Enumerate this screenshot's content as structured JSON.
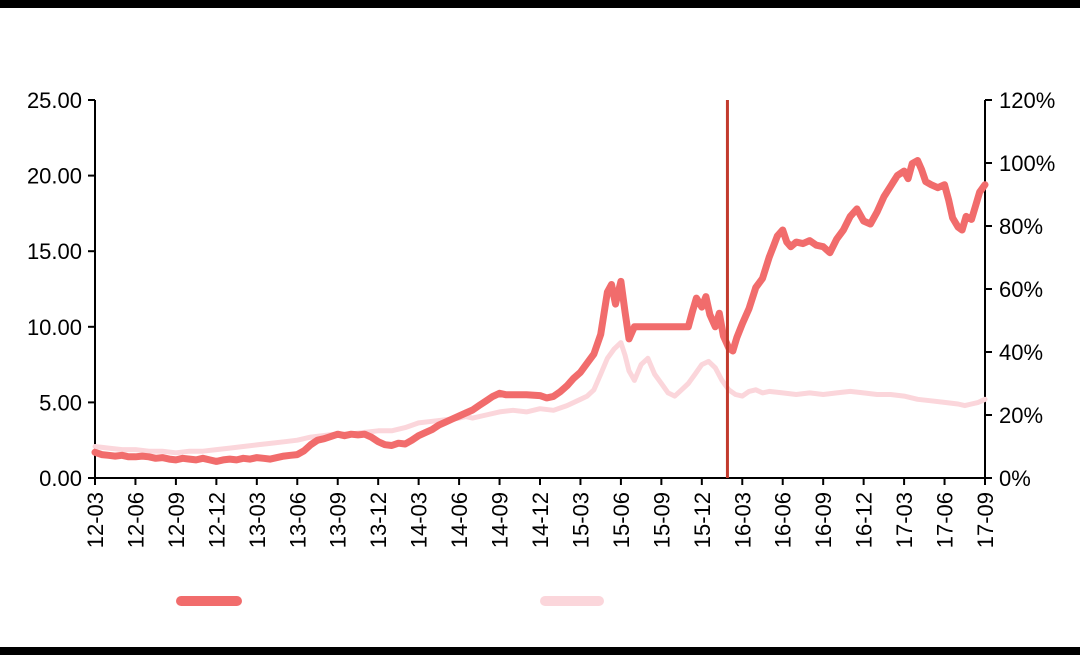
{
  "page": {
    "background": "#ffffff",
    "bar_color": "#000000"
  },
  "chart_data": {
    "type": "line",
    "title": "",
    "xlabel": "",
    "ylabel_left": "",
    "ylabel_right": "",
    "grid": "off",
    "legend_position": "bottom",
    "x_axis": {
      "tick_labels": [
        "12-03",
        "12-06",
        "12-09",
        "12-12",
        "13-03",
        "13-06",
        "13-09",
        "13-12",
        "14-03",
        "14-06",
        "14-09",
        "14-12",
        "15-03",
        "15-06",
        "15-09",
        "15-12",
        "16-03",
        "16-06",
        "16-09",
        "16-12",
        "17-03",
        "17-06",
        "17-09"
      ],
      "months_per_tick": 3,
      "month_range": [
        0,
        66
      ]
    },
    "left_axis": {
      "tick_values": [
        0,
        5,
        10,
        15,
        20,
        25
      ],
      "tick_labels": [
        "0.00",
        "5.00",
        "10.00",
        "15.00",
        "20.00",
        "25.00"
      ],
      "min": 0,
      "max": 25
    },
    "right_axis": {
      "tick_values": [
        0,
        20,
        40,
        60,
        80,
        100,
        120
      ],
      "tick_labels": [
        "0%",
        "20%",
        "40%",
        "60%",
        "80%",
        "100%",
        "120%"
      ],
      "min": 0,
      "max": 120
    },
    "series": [
      {
        "name": "pink-series",
        "axis": "right",
        "color": "#fbd6db",
        "stroke_width": 5,
        "points": [
          [
            0,
            10
          ],
          [
            1,
            9.5
          ],
          [
            2,
            9
          ],
          [
            3,
            9
          ],
          [
            4,
            8.5
          ],
          [
            5,
            8.5
          ],
          [
            6,
            8
          ],
          [
            7,
            8.5
          ],
          [
            8,
            8.5
          ],
          [
            9,
            9
          ],
          [
            10,
            9.5
          ],
          [
            11,
            10
          ],
          [
            12,
            10.5
          ],
          [
            13,
            11
          ],
          [
            14,
            11.5
          ],
          [
            15,
            12
          ],
          [
            16,
            13
          ],
          [
            17,
            13.5
          ],
          [
            18,
            14
          ],
          [
            19,
            14
          ],
          [
            20,
            14.5
          ],
          [
            21,
            15
          ],
          [
            22,
            15
          ],
          [
            23,
            16
          ],
          [
            24,
            17.5
          ],
          [
            25,
            18
          ],
          [
            26,
            18.5
          ],
          [
            27,
            19
          ],
          [
            27.5,
            19.5
          ],
          [
            28,
            19
          ],
          [
            29,
            20
          ],
          [
            30,
            21
          ],
          [
            31,
            21.5
          ],
          [
            32,
            21
          ],
          [
            33,
            22
          ],
          [
            34,
            21.5
          ],
          [
            35,
            23
          ],
          [
            36,
            25
          ],
          [
            36.5,
            26
          ],
          [
            37,
            28
          ],
          [
            37.5,
            33
          ],
          [
            38,
            38
          ],
          [
            38.5,
            41
          ],
          [
            39,
            43
          ],
          [
            39.3,
            39
          ],
          [
            39.6,
            34
          ],
          [
            40,
            31
          ],
          [
            40.5,
            36
          ],
          [
            41,
            38
          ],
          [
            41.5,
            33
          ],
          [
            42,
            30
          ],
          [
            42.5,
            27
          ],
          [
            43,
            26
          ],
          [
            43.5,
            28
          ],
          [
            44,
            30
          ],
          [
            44.5,
            33
          ],
          [
            45,
            36
          ],
          [
            45.5,
            37
          ],
          [
            46,
            35
          ],
          [
            46.5,
            31
          ],
          [
            47,
            28
          ],
          [
            47.5,
            26.5
          ],
          [
            48,
            26
          ],
          [
            48.5,
            27.5
          ],
          [
            49,
            28
          ],
          [
            49.5,
            27
          ],
          [
            50,
            27.5
          ],
          [
            51,
            27
          ],
          [
            52,
            26.5
          ],
          [
            53,
            27
          ],
          [
            54,
            26.5
          ],
          [
            55,
            27
          ],
          [
            56,
            27.5
          ],
          [
            57,
            27
          ],
          [
            58,
            26.5
          ],
          [
            59,
            26.5
          ],
          [
            60,
            26
          ],
          [
            60.5,
            25.5
          ],
          [
            61,
            25
          ],
          [
            62,
            24.5
          ],
          [
            63,
            24
          ],
          [
            64,
            23.5
          ],
          [
            64.5,
            23
          ],
          [
            65,
            23.5
          ],
          [
            65.5,
            24
          ],
          [
            66,
            25
          ]
        ]
      },
      {
        "name": "red-series",
        "axis": "left",
        "color": "#f16c6c",
        "stroke_width": 7,
        "points": [
          [
            0,
            1.7
          ],
          [
            0.5,
            1.55
          ],
          [
            1,
            1.5
          ],
          [
            1.5,
            1.45
          ],
          [
            2,
            1.5
          ],
          [
            2.5,
            1.4
          ],
          [
            3,
            1.4
          ],
          [
            3.5,
            1.45
          ],
          [
            4,
            1.4
          ],
          [
            4.5,
            1.3
          ],
          [
            5,
            1.35
          ],
          [
            5.5,
            1.25
          ],
          [
            6,
            1.2
          ],
          [
            6.5,
            1.3
          ],
          [
            7,
            1.25
          ],
          [
            7.5,
            1.2
          ],
          [
            8,
            1.3
          ],
          [
            8.5,
            1.2
          ],
          [
            9,
            1.1
          ],
          [
            9.5,
            1.2
          ],
          [
            10,
            1.25
          ],
          [
            10.5,
            1.2
          ],
          [
            11,
            1.3
          ],
          [
            11.5,
            1.25
          ],
          [
            12,
            1.35
          ],
          [
            12.5,
            1.3
          ],
          [
            13,
            1.25
          ],
          [
            13.5,
            1.35
          ],
          [
            14,
            1.45
          ],
          [
            14.5,
            1.5
          ],
          [
            15,
            1.55
          ],
          [
            15.5,
            1.8
          ],
          [
            16,
            2.2
          ],
          [
            16.5,
            2.5
          ],
          [
            17,
            2.6
          ],
          [
            17.5,
            2.75
          ],
          [
            18,
            2.9
          ],
          [
            18.5,
            2.8
          ],
          [
            19,
            2.9
          ],
          [
            19.5,
            2.85
          ],
          [
            20,
            2.9
          ],
          [
            20.5,
            2.7
          ],
          [
            21,
            2.4
          ],
          [
            21.5,
            2.2
          ],
          [
            22,
            2.15
          ],
          [
            22.5,
            2.3
          ],
          [
            23,
            2.25
          ],
          [
            23.5,
            2.5
          ],
          [
            24,
            2.8
          ],
          [
            24.5,
            3.0
          ],
          [
            25,
            3.2
          ],
          [
            25.5,
            3.5
          ],
          [
            26,
            3.7
          ],
          [
            26.5,
            3.9
          ],
          [
            27,
            4.1
          ],
          [
            27.5,
            4.3
          ],
          [
            28,
            4.5
          ],
          [
            28.5,
            4.8
          ],
          [
            29,
            5.1
          ],
          [
            29.5,
            5.4
          ],
          [
            30,
            5.6
          ],
          [
            30.5,
            5.5
          ],
          [
            31,
            5.5
          ],
          [
            32,
            5.5
          ],
          [
            33,
            5.45
          ],
          [
            33.5,
            5.3
          ],
          [
            34,
            5.4
          ],
          [
            34.5,
            5.7
          ],
          [
            35,
            6.1
          ],
          [
            35.5,
            6.6
          ],
          [
            36,
            7.0
          ],
          [
            36.5,
            7.6
          ],
          [
            37,
            8.2
          ],
          [
            37.5,
            9.5
          ],
          [
            38,
            12.3
          ],
          [
            38.3,
            12.8
          ],
          [
            38.6,
            11.5
          ],
          [
            39,
            13.0
          ],
          [
            39.3,
            11.0
          ],
          [
            39.6,
            9.2
          ],
          [
            40,
            10.0
          ],
          [
            40.5,
            10.0
          ],
          [
            41,
            10.0
          ],
          [
            41.5,
            10.0
          ],
          [
            42,
            10.0
          ],
          [
            42.5,
            10.0
          ],
          [
            43,
            10.0
          ],
          [
            43.5,
            10.0
          ],
          [
            44,
            10.0
          ],
          [
            44.3,
            11.0
          ],
          [
            44.6,
            11.9
          ],
          [
            45,
            11.3
          ],
          [
            45.3,
            12.0
          ],
          [
            45.6,
            10.8
          ],
          [
            46,
            10.0
          ],
          [
            46.3,
            10.9
          ],
          [
            46.6,
            9.4
          ],
          [
            47,
            8.6
          ],
          [
            47.3,
            8.4
          ],
          [
            47.6,
            9.3
          ],
          [
            48,
            10.2
          ],
          [
            48.5,
            11.2
          ],
          [
            49,
            12.6
          ],
          [
            49.5,
            13.2
          ],
          [
            50,
            14.6
          ],
          [
            50.3,
            15.3
          ],
          [
            50.6,
            16.0
          ],
          [
            51,
            16.4
          ],
          [
            51.3,
            15.6
          ],
          [
            51.6,
            15.3
          ],
          [
            52,
            15.6
          ],
          [
            52.5,
            15.5
          ],
          [
            53,
            15.7
          ],
          [
            53.5,
            15.4
          ],
          [
            54,
            15.3
          ],
          [
            54.5,
            14.9
          ],
          [
            55,
            15.8
          ],
          [
            55.5,
            16.4
          ],
          [
            56,
            17.3
          ],
          [
            56.5,
            17.8
          ],
          [
            57,
            17.0
          ],
          [
            57.5,
            16.8
          ],
          [
            58,
            17.6
          ],
          [
            58.5,
            18.6
          ],
          [
            59,
            19.3
          ],
          [
            59.5,
            20.0
          ],
          [
            60,
            20.3
          ],
          [
            60.3,
            19.8
          ],
          [
            60.6,
            20.8
          ],
          [
            61,
            21.0
          ],
          [
            61.3,
            20.4
          ],
          [
            61.6,
            19.6
          ],
          [
            62,
            19.4
          ],
          [
            62.5,
            19.2
          ],
          [
            63,
            19.4
          ],
          [
            63.3,
            18.4
          ],
          [
            63.6,
            17.2
          ],
          [
            64,
            16.6
          ],
          [
            64.3,
            16.4
          ],
          [
            64.6,
            17.3
          ],
          [
            65,
            17.1
          ],
          [
            65.3,
            18.0
          ],
          [
            65.6,
            18.9
          ],
          [
            66,
            19.4
          ]
        ]
      }
    ],
    "marker_line": {
      "month": 46.9,
      "color": "#c23a2d",
      "stroke_width": 3
    },
    "legend": [
      {
        "name": "red-series-swatch",
        "color": "#f16c6c"
      },
      {
        "name": "pink-series-swatch",
        "color": "#fbd6db"
      }
    ],
    "axis_color": "#000000"
  }
}
